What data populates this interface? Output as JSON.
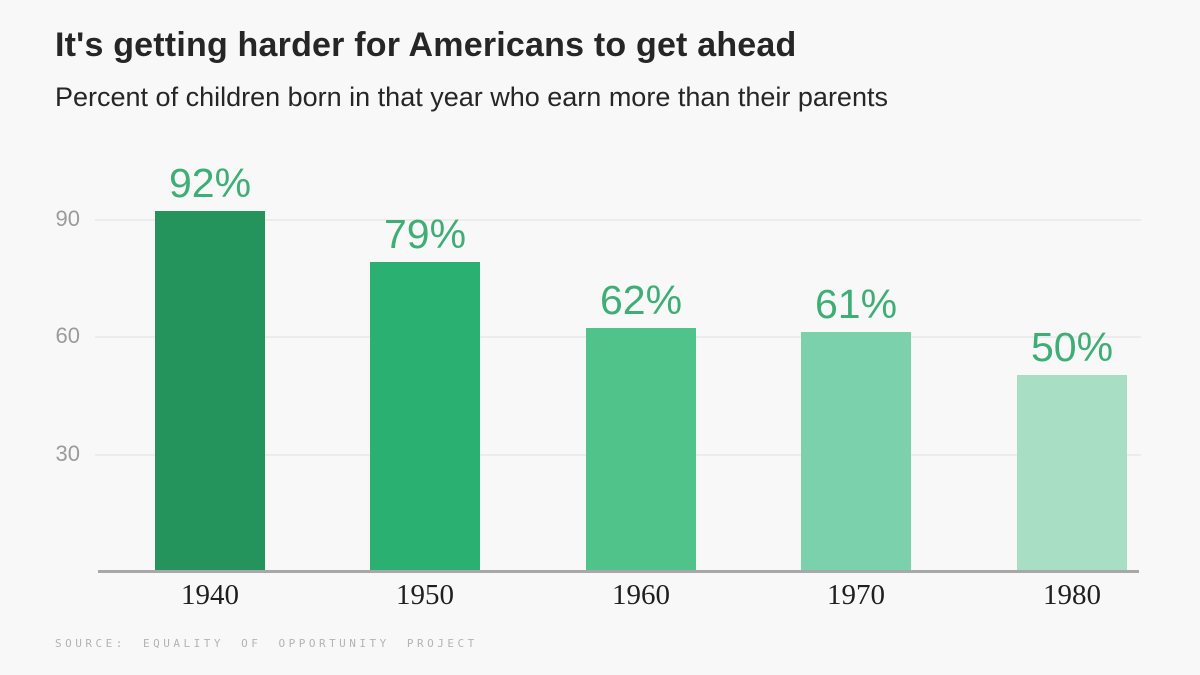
{
  "page": {
    "background": "#f8f8f8"
  },
  "header": {
    "title": "It's getting harder for Americans to get ahead",
    "subtitle": "Percent of children born in that year who earn more than their parents"
  },
  "chart_data": {
    "type": "bar",
    "title": "It's getting harder for Americans to get ahead",
    "subtitle": "Percent of children born in that year who earn more than their parents",
    "categories": [
      "1940",
      "1950",
      "1960",
      "1970",
      "1980"
    ],
    "values": [
      92,
      79,
      62,
      61,
      50
    ],
    "value_labels": [
      "92%",
      "79%",
      "62%",
      "61%",
      "50%"
    ],
    "bar_colors": [
      "#24935c",
      "#2ab171",
      "#50c38a",
      "#7bd1ab",
      "#a8dec3"
    ],
    "label_color": "#3fae76",
    "xlabel": "",
    "ylabel": "",
    "ylim": [
      0,
      100
    ],
    "ytick_values": [
      30,
      60,
      90
    ],
    "grid": "horizontal-only",
    "gridline_color": "#ececec",
    "axis_line_color": "#a8a8a8",
    "legend": "none"
  },
  "axis": {
    "yticks_top_to_bottom": [
      "90",
      "60",
      "30"
    ]
  },
  "source": "SOURCE: EQUALITY OF OPPORTUNITY PROJECT"
}
